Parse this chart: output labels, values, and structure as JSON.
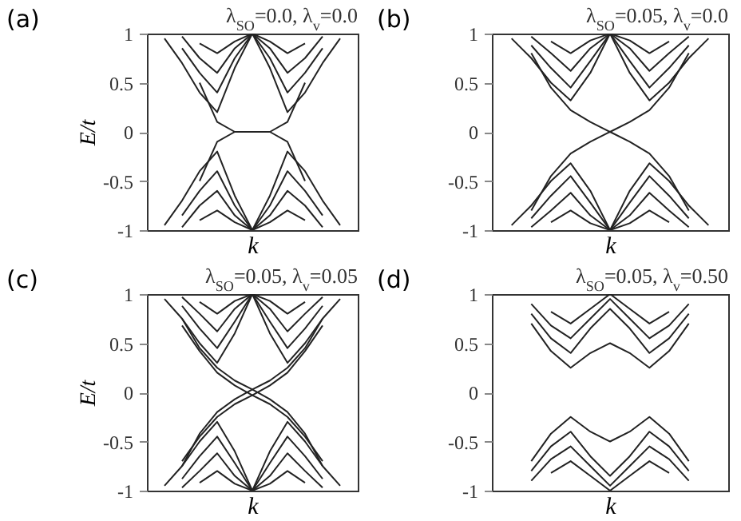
{
  "chart_data": [
    {
      "type": "line",
      "title": "(a)",
      "xlabel": "k",
      "ylabel": "E/t",
      "categories": [
        null,
        null,
        null,
        null,
        null,
        null,
        null,
        null,
        null,
        null,
        null,
        null,
        null
      ],
      "ylim": [
        -1,
        1
      ],
      "yticks": [
        -1,
        -0.5,
        0,
        0.5,
        1
      ],
      "tick_labels": "y",
      "annotations": [
        "λ$_{SO}$=0.0, λ$_{v}$=0.0"
      ],
      "series": [
        {
          "color": "#222222",
          "values": [
            null,
            0.95,
            0.7,
            0.4,
            0.2,
            0.65,
            1,
            0.65,
            0.2,
            0.4,
            0.7,
            0.95,
            null
          ]
        },
        {
          "color": "#222222",
          "values": [
            null,
            null,
            0.85,
            0.6,
            0.4,
            0.75,
            1,
            0.75,
            0.4,
            0.6,
            0.85,
            null,
            null
          ]
        },
        {
          "color": "#222222",
          "values": [
            null,
            null,
            0.97,
            0.75,
            0.6,
            0.85,
            1,
            0.85,
            0.6,
            0.75,
            0.97,
            null,
            null
          ]
        },
        {
          "color": "#222222",
          "values": [
            null,
            null,
            null,
            0.9,
            0.8,
            0.92,
            1,
            0.92,
            0.8,
            0.9,
            null,
            null,
            null
          ]
        },
        {
          "color": "#222222",
          "values": [
            null,
            null,
            null,
            0.5,
            0.1,
            0,
            0,
            0,
            0.1,
            0.5,
            null,
            null,
            null
          ]
        },
        {
          "color": "#222222",
          "values": [
            null,
            null,
            null,
            -0.5,
            -0.1,
            0,
            0,
            0,
            -0.1,
            -0.5,
            null,
            null,
            null
          ]
        },
        {
          "color": "#222222",
          "values": [
            null,
            -0.95,
            -0.7,
            -0.4,
            -0.2,
            -0.65,
            -1,
            -0.65,
            -0.2,
            -0.4,
            -0.7,
            -0.95,
            null
          ]
        },
        {
          "color": "#222222",
          "values": [
            null,
            null,
            -0.85,
            -0.6,
            -0.4,
            -0.75,
            -1,
            -0.75,
            -0.4,
            -0.6,
            -0.85,
            null,
            null
          ]
        },
        {
          "color": "#222222",
          "values": [
            null,
            null,
            -0.97,
            -0.75,
            -0.6,
            -0.85,
            -1,
            -0.85,
            -0.6,
            -0.75,
            -0.97,
            null,
            null
          ]
        },
        {
          "color": "#222222",
          "values": [
            null,
            null,
            null,
            -0.9,
            -0.8,
            -0.92,
            -1,
            -0.92,
            -0.8,
            -0.9,
            null,
            null,
            null
          ]
        }
      ]
    },
    {
      "type": "line",
      "title": "(b)",
      "xlabel": "k",
      "categories": [
        null,
        null,
        null,
        null,
        null,
        null,
        null,
        null,
        null,
        null,
        null,
        null,
        null
      ],
      "ylim": [
        -1,
        1
      ],
      "yticks": [
        -1,
        -0.5,
        0,
        0.5,
        1
      ],
      "tick_labels": "y",
      "annotations": [
        "λ$_{SO}$=0.05, λ$_{v}$=0.0"
      ],
      "series": [
        {
          "color": "#222222",
          "values": [
            null,
            0.95,
            0.75,
            0.5,
            0.32,
            0.6,
            1,
            0.6,
            0.32,
            0.5,
            0.75,
            0.95,
            null
          ]
        },
        {
          "color": "#222222",
          "values": [
            null,
            null,
            0.88,
            0.65,
            0.45,
            0.72,
            1,
            0.72,
            0.45,
            0.65,
            0.88,
            null,
            null
          ]
        },
        {
          "color": "#222222",
          "values": [
            null,
            null,
            0.97,
            0.8,
            0.62,
            0.85,
            1,
            0.85,
            0.62,
            0.8,
            0.97,
            null,
            null
          ]
        },
        {
          "color": "#222222",
          "values": [
            null,
            null,
            null,
            0.92,
            0.8,
            0.93,
            1,
            0.93,
            0.8,
            0.92,
            null,
            null,
            null
          ]
        },
        {
          "color": "#222222",
          "values": [
            null,
            null,
            0.8,
            0.45,
            0.22,
            0.1,
            0,
            -0.1,
            -0.22,
            -0.45,
            -0.8,
            null,
            null
          ]
        },
        {
          "color": "#222222",
          "values": [
            null,
            null,
            -0.8,
            -0.45,
            -0.22,
            -0.1,
            0,
            0.1,
            0.22,
            0.45,
            0.8,
            null,
            null
          ]
        },
        {
          "color": "#222222",
          "values": [
            null,
            -0.95,
            -0.75,
            -0.5,
            -0.32,
            -0.6,
            -1,
            -0.6,
            -0.32,
            -0.5,
            -0.75,
            -0.95,
            null
          ]
        },
        {
          "color": "#222222",
          "values": [
            null,
            null,
            -0.88,
            -0.65,
            -0.45,
            -0.72,
            -1,
            -0.72,
            -0.45,
            -0.65,
            -0.88,
            null,
            null
          ]
        },
        {
          "color": "#222222",
          "values": [
            null,
            null,
            -0.97,
            -0.8,
            -0.62,
            -0.85,
            -1,
            -0.85,
            -0.62,
            -0.8,
            -0.97,
            null,
            null
          ]
        },
        {
          "color": "#222222",
          "values": [
            null,
            null,
            null,
            -0.92,
            -0.8,
            -0.93,
            -1,
            -0.93,
            -0.8,
            -0.92,
            null,
            null,
            null
          ]
        }
      ]
    },
    {
      "type": "line",
      "title": "(c)",
      "xlabel": "k",
      "ylabel": "E/t",
      "categories": [
        null,
        null,
        null,
        null,
        null,
        null,
        null,
        null,
        null,
        null,
        null,
        null,
        null
      ],
      "ylim": [
        -1,
        1
      ],
      "yticks": [
        -1,
        -0.5,
        0,
        0.5,
        1
      ],
      "tick_labels": "y",
      "annotations": [
        "λ$_{SO}$=0.05, λ$_{v}$=0.05"
      ],
      "series": [
        {
          "color": "#222222",
          "values": [
            null,
            0.95,
            0.75,
            0.5,
            0.3,
            0.6,
            1,
            0.6,
            0.3,
            0.5,
            0.75,
            0.95,
            null
          ]
        },
        {
          "color": "#222222",
          "values": [
            null,
            null,
            0.88,
            0.65,
            0.45,
            0.72,
            1,
            0.72,
            0.45,
            0.65,
            0.88,
            null,
            null
          ]
        },
        {
          "color": "#222222",
          "values": [
            null,
            null,
            0.97,
            0.8,
            0.62,
            0.85,
            1,
            0.85,
            0.62,
            0.8,
            0.97,
            null,
            null
          ]
        },
        {
          "color": "#222222",
          "values": [
            null,
            null,
            null,
            0.92,
            0.8,
            0.93,
            1,
            0.93,
            0.8,
            0.92,
            null,
            null,
            null
          ]
        },
        {
          "color": "#222222",
          "values": [
            null,
            null,
            0.75,
            0.45,
            0.25,
            0.12,
            0.03,
            -0.07,
            -0.2,
            -0.42,
            -0.75,
            null,
            null
          ]
        },
        {
          "color": "#222222",
          "values": [
            null,
            null,
            0.68,
            0.42,
            0.2,
            0.07,
            -0.03,
            -0.12,
            -0.25,
            -0.45,
            -0.7,
            null,
            null
          ]
        },
        {
          "color": "#222222",
          "values": [
            null,
            null,
            -0.75,
            -0.42,
            -0.2,
            -0.07,
            0.03,
            0.12,
            0.25,
            0.45,
            0.75,
            null,
            null
          ]
        },
        {
          "color": "#222222",
          "values": [
            null,
            null,
            -0.7,
            -0.45,
            -0.25,
            -0.12,
            -0.03,
            0.07,
            0.2,
            0.42,
            0.68,
            null,
            null
          ]
        },
        {
          "color": "#222222",
          "values": [
            null,
            -0.95,
            -0.75,
            -0.5,
            -0.3,
            -0.6,
            -1,
            -0.6,
            -0.3,
            -0.5,
            -0.75,
            -0.95,
            null
          ]
        },
        {
          "color": "#222222",
          "values": [
            null,
            null,
            -0.88,
            -0.65,
            -0.45,
            -0.72,
            -1,
            -0.72,
            -0.45,
            -0.65,
            -0.88,
            null,
            null
          ]
        },
        {
          "color": "#222222",
          "values": [
            null,
            null,
            -0.97,
            -0.8,
            -0.62,
            -0.85,
            -1,
            -0.85,
            -0.62,
            -0.8,
            -0.97,
            null,
            null
          ]
        },
        {
          "color": "#222222",
          "values": [
            null,
            null,
            null,
            -0.92,
            -0.8,
            -0.93,
            -1,
            -0.93,
            -0.8,
            -0.92,
            null,
            null,
            null
          ]
        }
      ]
    },
    {
      "type": "line",
      "title": "(d)",
      "xlabel": "k",
      "categories": [
        null,
        null,
        null,
        null,
        null,
        null,
        null,
        null,
        null,
        null,
        null,
        null,
        null
      ],
      "ylim": [
        -1,
        1
      ],
      "yticks": [
        -1,
        -0.5,
        0,
        0.5,
        1
      ],
      "tick_labels": "y",
      "annotations": [
        "λ$_{SO}$=0.05, λ$_{v}$=0.50"
      ],
      "series": [
        {
          "color": "#222222",
          "values": [
            null,
            null,
            0.7,
            0.42,
            0.25,
            0.4,
            0.5,
            0.4,
            0.25,
            0.42,
            0.7,
            null,
            null
          ]
        },
        {
          "color": "#222222",
          "values": [
            null,
            null,
            0.8,
            0.55,
            0.4,
            0.65,
            0.85,
            0.65,
            0.4,
            0.55,
            0.8,
            null,
            null
          ]
        },
        {
          "color": "#222222",
          "values": [
            null,
            null,
            0.9,
            0.68,
            0.55,
            0.75,
            0.95,
            0.75,
            0.55,
            0.68,
            0.9,
            null,
            null
          ]
        },
        {
          "color": "#222222",
          "values": [
            null,
            null,
            null,
            0.82,
            0.7,
            0.85,
            1,
            0.85,
            0.7,
            0.82,
            null,
            null,
            null
          ]
        },
        {
          "color": "#222222",
          "values": [
            null,
            null,
            -0.7,
            -0.42,
            -0.25,
            -0.4,
            -0.5,
            -0.4,
            -0.25,
            -0.42,
            -0.7,
            null,
            null
          ]
        },
        {
          "color": "#222222",
          "values": [
            null,
            null,
            -0.8,
            -0.55,
            -0.4,
            -0.65,
            -0.85,
            -0.65,
            -0.4,
            -0.55,
            -0.8,
            null,
            null
          ]
        },
        {
          "color": "#222222",
          "values": [
            null,
            null,
            -0.9,
            -0.68,
            -0.55,
            -0.75,
            -0.95,
            -0.75,
            -0.55,
            -0.68,
            -0.9,
            null,
            null
          ]
        },
        {
          "color": "#222222",
          "values": [
            null,
            null,
            null,
            -0.82,
            -0.7,
            -0.85,
            -1,
            -0.85,
            -0.7,
            -0.82,
            null,
            null,
            null
          ]
        }
      ]
    }
  ]
}
